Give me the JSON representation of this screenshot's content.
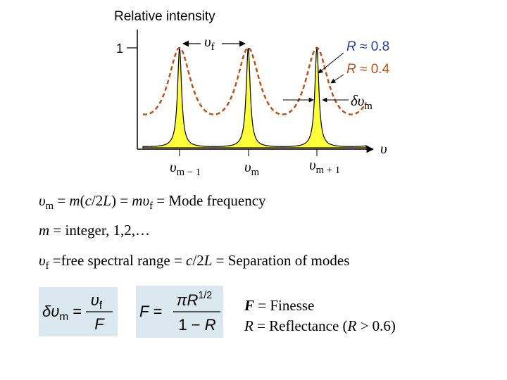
{
  "graph": {
    "y_axis_label": "Relative intensity",
    "y_tick": "1",
    "x_axis_label": [
      {
        "text": "υ",
        "style": "italic"
      }
    ],
    "fsr_label": [
      {
        "text": "υ",
        "style": "italic"
      },
      {
        "text": "f",
        "style": "sub"
      }
    ],
    "curves": [
      {
        "label": [
          {
            "text": "R",
            "style": "italic"
          },
          {
            "text": " ≈ 0.8",
            "style": "normal"
          }
        ],
        "color": "#2a3f9a"
      },
      {
        "label": [
          {
            "text": "R",
            "style": "italic"
          },
          {
            "text": " ≈ 0.4",
            "style": "normal"
          }
        ],
        "color": "#b5541e"
      }
    ],
    "linewidth_label": [
      {
        "text": "δυ",
        "style": "italic"
      },
      {
        "text": "m",
        "style": "sub"
      }
    ],
    "peak_labels": [
      [
        {
          "text": "υ",
          "style": "italic"
        },
        {
          "text": "m − 1",
          "style": "sub"
        }
      ],
      [
        {
          "text": "υ",
          "style": "italic"
        },
        {
          "text": "m",
          "style": "sub"
        }
      ],
      [
        {
          "text": "υ",
          "style": "italic"
        },
        {
          "text": "m + 1",
          "style": "sub"
        }
      ]
    ]
  },
  "lines": [
    [
      {
        "text": "υ",
        "style": "italic"
      },
      {
        "text": "m",
        "style": "sub"
      },
      {
        "text": " = ",
        "style": "normal"
      },
      {
        "text": "m",
        "style": "italic"
      },
      {
        "text": "(",
        "style": "normal"
      },
      {
        "text": "c",
        "style": "italic"
      },
      {
        "text": "/2",
        "style": "normal"
      },
      {
        "text": "L",
        "style": "italic"
      },
      {
        "text": ") = ",
        "style": "normal"
      },
      {
        "text": "m",
        "style": "italic"
      },
      {
        "text": "υ",
        "style": "italic"
      },
      {
        "text": "f",
        "style": "sub"
      },
      {
        "text": " = Mode frequency",
        "style": "normal"
      }
    ],
    [
      {
        "text": "m",
        "style": "italic"
      },
      {
        "text": " = integer, 1,2,…",
        "style": "normal"
      }
    ],
    [
      {
        "text": "υ",
        "style": "italic"
      },
      {
        "text": "f",
        "style": "sub"
      },
      {
        "text": " =free spectral range = ",
        "style": "normal"
      },
      {
        "text": "c",
        "style": "italic"
      },
      {
        "text": "/2",
        "style": "normal"
      },
      {
        "text": "L",
        "style": "italic"
      },
      {
        "text": " = Separation of modes",
        "style": "normal"
      }
    ]
  ],
  "formulas": {
    "linewidth": {
      "left": [
        {
          "text": "δυ",
          "style": "italic"
        },
        {
          "text": "m",
          "style": "sub"
        },
        {
          "text": " =",
          "style": "normal"
        }
      ],
      "numerator": [
        {
          "text": "υ",
          "style": "italic"
        },
        {
          "text": "f",
          "style": "sub"
        }
      ],
      "denominator": [
        {
          "text": "F",
          "style": "italic"
        }
      ]
    },
    "finesse": {
      "left": [
        {
          "text": "F",
          "style": "italic"
        },
        {
          "text": " =",
          "style": "normal"
        }
      ],
      "numerator": [
        {
          "text": "πR",
          "style": "italic"
        },
        {
          "text": "1/2",
          "style": "sup"
        }
      ],
      "denominator": [
        {
          "text": "1 − ",
          "style": "normal"
        },
        {
          "text": "R",
          "style": "italic"
        }
      ]
    }
  },
  "notes": [
    [
      {
        "text": "F",
        "style": "bold-italic"
      },
      {
        "text": " = Finesse",
        "style": "normal"
      }
    ],
    [
      {
        "text": "R",
        "style": "italic"
      },
      {
        "text": " = Reflectance (",
        "style": "normal"
      },
      {
        "text": "R",
        "style": "italic"
      },
      {
        "text": " > 0.6)",
        "style": "normal"
      }
    ]
  ]
}
